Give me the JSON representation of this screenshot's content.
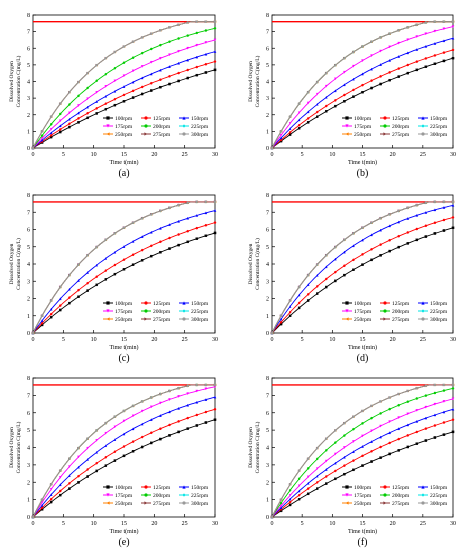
{
  "figure": {
    "panels": [
      {
        "label": "(a)"
      },
      {
        "label": "(b)"
      },
      {
        "label": "(c)"
      },
      {
        "label": "(d)"
      },
      {
        "label": "(e)"
      },
      {
        "label": "(f)"
      }
    ]
  },
  "chart_data": [
    {
      "type": "line",
      "panel_label": "(a)",
      "xlabel": "Time t(min)",
      "ylabel": "Dissolved Oxygen Concentration C(mg/L)",
      "xlim": [
        0,
        30
      ],
      "ylim": [
        0,
        8
      ],
      "xticks": [
        0,
        5,
        10,
        15,
        20,
        25,
        30
      ],
      "yticks": [
        0,
        1,
        2,
        3,
        4,
        5,
        6,
        7,
        8
      ],
      "saturation_line": {
        "y": 7.6,
        "color": "#ff0000"
      },
      "legend_placement": "lower-right",
      "series": [
        {
          "name": "100rpm",
          "color": "#000000",
          "marker": "square",
          "end_value": 4.7
        },
        {
          "name": "125rpm",
          "color": "#ff0000",
          "marker": "circle",
          "end_value": 5.2
        },
        {
          "name": "150rpm",
          "color": "#0000ff",
          "marker": "triangle-up",
          "end_value": 5.8
        },
        {
          "name": "175rpm",
          "color": "#ff00ff",
          "marker": "triangle-down",
          "end_value": 6.5
        },
        {
          "name": "200rpm",
          "color": "#00cc00",
          "marker": "circle",
          "end_value": 7.2
        },
        {
          "name": "225rpm",
          "color": "#00e5e5",
          "marker": "diamond",
          "end_value": 7.6
        },
        {
          "name": "250rpm",
          "color": "#ff8000",
          "marker": "triangle-left",
          "end_value": 7.6
        },
        {
          "name": "275rpm",
          "color": "#8b3a3a",
          "marker": "triangle-right",
          "end_value": 7.6
        },
        {
          "name": "300rpm",
          "color": "#999999",
          "marker": "circle",
          "end_value": 7.6
        }
      ]
    },
    {
      "type": "line",
      "panel_label": "(b)",
      "xlabel": "Time t(min)",
      "ylabel": "Dissolved Oxygen Concentration C(mg/L)",
      "xlim": [
        0,
        30
      ],
      "ylim": [
        0,
        8
      ],
      "xticks": [
        0,
        5,
        10,
        15,
        20,
        25,
        30
      ],
      "yticks": [
        0,
        1,
        2,
        3,
        4,
        5,
        6,
        7,
        8
      ],
      "saturation_line": {
        "y": 7.6,
        "color": "#ff0000"
      },
      "legend_placement": "lower-right",
      "series": [
        {
          "name": "100rpm",
          "color": "#000000",
          "marker": "square",
          "end_value": 5.4
        },
        {
          "name": "125rpm",
          "color": "#ff0000",
          "marker": "circle",
          "end_value": 5.9
        },
        {
          "name": "150rpm",
          "color": "#0000ff",
          "marker": "triangle-up",
          "end_value": 6.6
        },
        {
          "name": "175rpm",
          "color": "#ff00ff",
          "marker": "triangle-down",
          "end_value": 7.3
        },
        {
          "name": "200rpm",
          "color": "#00cc00",
          "marker": "circle",
          "end_value": 7.6
        },
        {
          "name": "225rpm",
          "color": "#00e5e5",
          "marker": "diamond",
          "end_value": 7.6
        },
        {
          "name": "250rpm",
          "color": "#ff8000",
          "marker": "triangle-left",
          "end_value": 7.6
        },
        {
          "name": "275rpm",
          "color": "#8b3a3a",
          "marker": "triangle-right",
          "end_value": 7.6
        },
        {
          "name": "300rpm",
          "color": "#999999",
          "marker": "circle",
          "end_value": 7.6
        }
      ]
    },
    {
      "type": "line",
      "panel_label": "(c)",
      "xlabel": "Time t(min)",
      "ylabel": "Dissolved Oxygen Concentration C(mg/L)",
      "xlim": [
        0,
        30
      ],
      "ylim": [
        0,
        8
      ],
      "xticks": [
        0,
        5,
        10,
        15,
        20,
        25,
        30
      ],
      "yticks": [
        0,
        1,
        2,
        3,
        4,
        5,
        6,
        7,
        8
      ],
      "saturation_line": {
        "y": 7.6,
        "color": "#ff0000"
      },
      "legend_placement": "lower-right",
      "series": [
        {
          "name": "100rpm",
          "color": "#000000",
          "marker": "square",
          "end_value": 5.8
        },
        {
          "name": "125rpm",
          "color": "#ff0000",
          "marker": "circle",
          "end_value": 6.4
        },
        {
          "name": "150rpm",
          "color": "#0000ff",
          "marker": "triangle-up",
          "end_value": 7.1
        },
        {
          "name": "175rpm",
          "color": "#ff00ff",
          "marker": "triangle-down",
          "end_value": 7.6
        },
        {
          "name": "200rpm",
          "color": "#00cc00",
          "marker": "circle",
          "end_value": 7.6
        },
        {
          "name": "225rpm",
          "color": "#00e5e5",
          "marker": "diamond",
          "end_value": 7.6
        },
        {
          "name": "250rpm",
          "color": "#ff8000",
          "marker": "triangle-left",
          "end_value": 7.6
        },
        {
          "name": "275rpm",
          "color": "#8b3a3a",
          "marker": "triangle-right",
          "end_value": 7.6
        },
        {
          "name": "300rpm",
          "color": "#999999",
          "marker": "circle",
          "end_value": 7.6
        }
      ]
    },
    {
      "type": "line",
      "panel_label": "(d)",
      "xlabel": "Time t(min)",
      "ylabel": "Dissolved Oxygen Concentration C(mg/L)",
      "xlim": [
        0,
        30
      ],
      "ylim": [
        0,
        8
      ],
      "xticks": [
        0,
        5,
        10,
        15,
        20,
        25,
        30
      ],
      "yticks": [
        0,
        1,
        2,
        3,
        4,
        5,
        6,
        7,
        8
      ],
      "saturation_line": {
        "y": 7.6,
        "color": "#ff0000"
      },
      "legend_placement": "lower-right",
      "series": [
        {
          "name": "100rpm",
          "color": "#000000",
          "marker": "square",
          "end_value": 6.1
        },
        {
          "name": "125rpm",
          "color": "#ff0000",
          "marker": "circle",
          "end_value": 6.7
        },
        {
          "name": "150rpm",
          "color": "#0000ff",
          "marker": "triangle-up",
          "end_value": 7.4
        },
        {
          "name": "175rpm",
          "color": "#ff00ff",
          "marker": "triangle-down",
          "end_value": 7.6
        },
        {
          "name": "200rpm",
          "color": "#00cc00",
          "marker": "circle",
          "end_value": 7.6
        },
        {
          "name": "225rpm",
          "color": "#00e5e5",
          "marker": "diamond",
          "end_value": 7.6
        },
        {
          "name": "250rpm",
          "color": "#ff8000",
          "marker": "triangle-left",
          "end_value": 7.6
        },
        {
          "name": "275rpm",
          "color": "#8b3a3a",
          "marker": "triangle-right",
          "end_value": 7.6
        },
        {
          "name": "300rpm",
          "color": "#999999",
          "marker": "circle",
          "end_value": 7.6
        }
      ]
    },
    {
      "type": "line",
      "panel_label": "(e)",
      "xlabel": "Time t(min)",
      "ylabel": "Dissolved Oxygen Concentration C(mg/L)",
      "xlim": [
        0,
        30
      ],
      "ylim": [
        0,
        8
      ],
      "xticks": [
        0,
        5,
        10,
        15,
        20,
        25,
        30
      ],
      "yticks": [
        0,
        1,
        2,
        3,
        4,
        5,
        6,
        7,
        8
      ],
      "saturation_line": {
        "y": 7.6,
        "color": "#ff0000"
      },
      "legend_placement": "lower-right",
      "series": [
        {
          "name": "100rpm",
          "color": "#000000",
          "marker": "square",
          "end_value": 5.6
        },
        {
          "name": "125rpm",
          "color": "#ff0000",
          "marker": "circle",
          "end_value": 6.2
        },
        {
          "name": "150rpm",
          "color": "#0000ff",
          "marker": "triangle-up",
          "end_value": 6.9
        },
        {
          "name": "175rpm",
          "color": "#ff00ff",
          "marker": "triangle-down",
          "end_value": 7.5
        },
        {
          "name": "200rpm",
          "color": "#00cc00",
          "marker": "circle",
          "end_value": 7.6
        },
        {
          "name": "225rpm",
          "color": "#00e5e5",
          "marker": "diamond",
          "end_value": 7.6
        },
        {
          "name": "250rpm",
          "color": "#ff8000",
          "marker": "triangle-left",
          "end_value": 7.6
        },
        {
          "name": "275rpm",
          "color": "#8b3a3a",
          "marker": "triangle-right",
          "end_value": 7.6
        },
        {
          "name": "300rpm",
          "color": "#999999",
          "marker": "circle",
          "end_value": 7.6
        }
      ]
    },
    {
      "type": "line",
      "panel_label": "(f)",
      "xlabel": "Time t(min)",
      "ylabel": "Dissolved Oxygen Concentration C(mg/L)",
      "xlim": [
        0,
        30
      ],
      "ylim": [
        0,
        8
      ],
      "xticks": [
        0,
        5,
        10,
        15,
        20,
        25,
        30
      ],
      "yticks": [
        0,
        1,
        2,
        3,
        4,
        5,
        6,
        7,
        8
      ],
      "saturation_line": {
        "y": 7.6,
        "color": "#ff0000"
      },
      "legend_placement": "lower-right",
      "series": [
        {
          "name": "100rpm",
          "color": "#000000",
          "marker": "square",
          "end_value": 4.9
        },
        {
          "name": "125rpm",
          "color": "#ff0000",
          "marker": "circle",
          "end_value": 5.6
        },
        {
          "name": "150rpm",
          "color": "#0000ff",
          "marker": "triangle-up",
          "end_value": 6.2
        },
        {
          "name": "175rpm",
          "color": "#ff00ff",
          "marker": "triangle-down",
          "end_value": 6.8
        },
        {
          "name": "200rpm",
          "color": "#00cc00",
          "marker": "circle",
          "end_value": 7.4
        },
        {
          "name": "225rpm",
          "color": "#00e5e5",
          "marker": "diamond",
          "end_value": 7.6
        },
        {
          "name": "250rpm",
          "color": "#ff8000",
          "marker": "triangle-left",
          "end_value": 7.6
        },
        {
          "name": "275rpm",
          "color": "#8b3a3a",
          "marker": "triangle-right",
          "end_value": 7.6
        },
        {
          "name": "300rpm",
          "color": "#999999",
          "marker": "circle",
          "end_value": 7.6
        }
      ]
    }
  ]
}
